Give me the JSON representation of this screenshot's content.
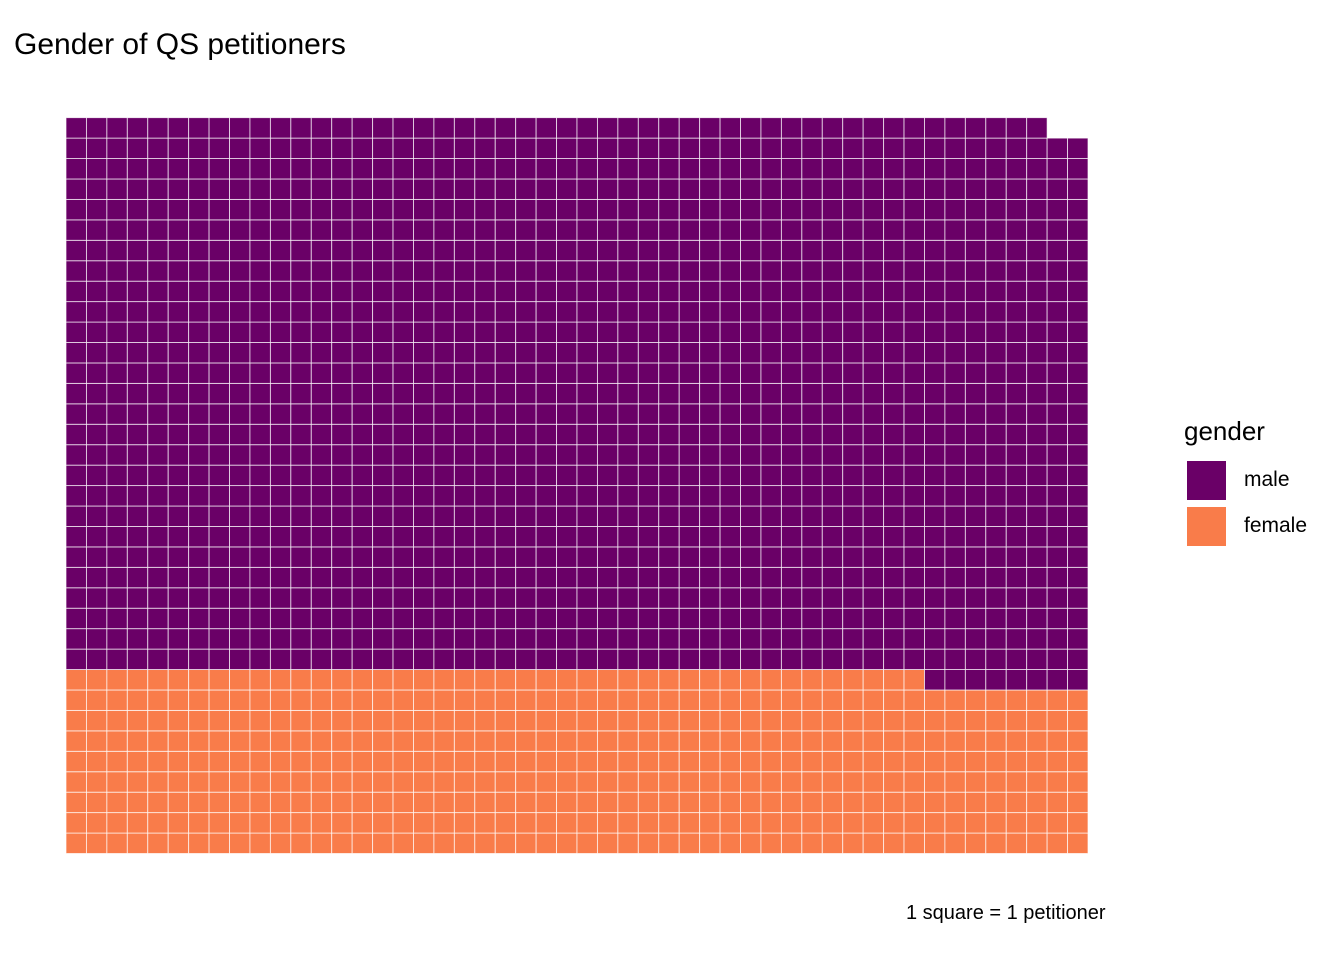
{
  "chart_data": {
    "type": "waffle",
    "title": "Gender of QS petitioners",
    "caption": "1 square = 1 petitioner",
    "legend_title": "gender",
    "legend_position": "right",
    "columns": 50,
    "series": [
      {
        "name": "male",
        "value": 1356,
        "color": "#6A0067"
      },
      {
        "name": "female",
        "value": 442,
        "color": "#F97C4A"
      }
    ]
  }
}
